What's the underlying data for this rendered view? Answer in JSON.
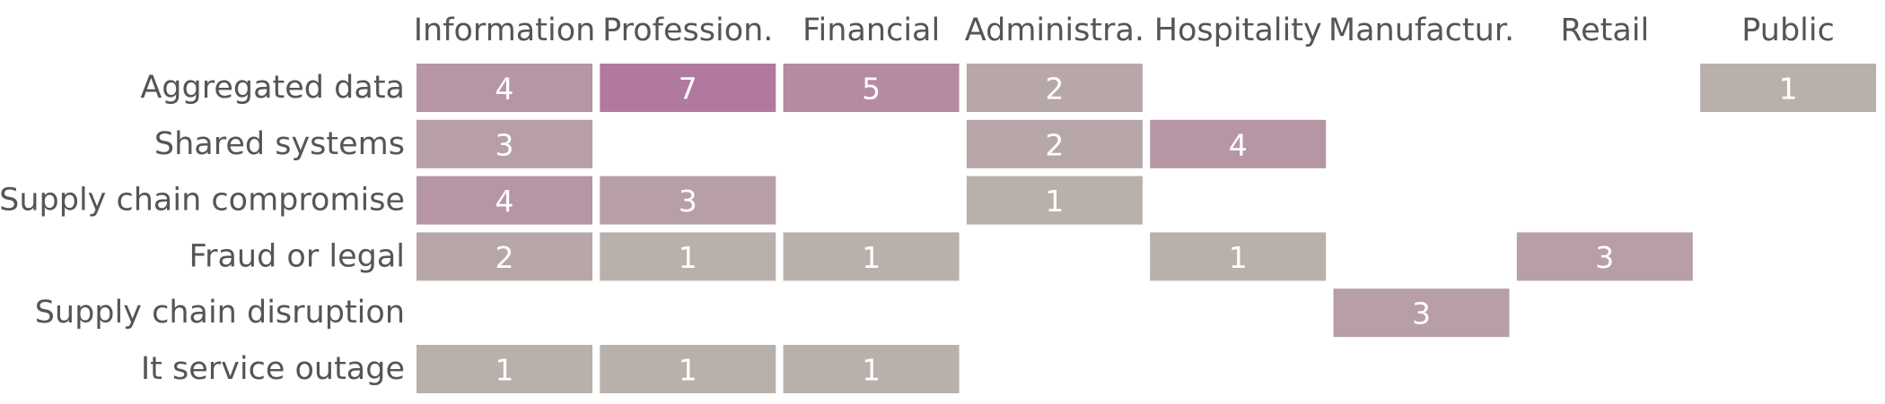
{
  "chart_data": {
    "type": "heatmap",
    "title": "",
    "xlabel": "",
    "ylabel": "",
    "columns": [
      "Information",
      "Profession.",
      "Financial",
      "Administra.",
      "Hospitality",
      "Manufactur.",
      "Retail",
      "Public"
    ],
    "rows": [
      "Aggregated data",
      "Shared systems",
      "Supply chain compromise",
      "Fraud or legal",
      "Supply chain disruption",
      "It service outage"
    ],
    "values": [
      [
        4,
        7,
        5,
        2,
        null,
        null,
        null,
        1
      ],
      [
        3,
        null,
        null,
        2,
        4,
        null,
        null,
        null
      ],
      [
        4,
        3,
        null,
        1,
        null,
        null,
        null,
        null
      ],
      [
        2,
        1,
        1,
        null,
        1,
        null,
        3,
        null
      ],
      [
        null,
        null,
        null,
        null,
        null,
        3,
        null,
        null
      ],
      [
        1,
        1,
        1,
        null,
        null,
        null,
        null,
        null
      ]
    ],
    "color_scale": {
      "low": "#b9b0ab",
      "high": "#b2799f",
      "min": 1,
      "max": 7
    },
    "label_color": "#ffffff",
    "text_color": "#555555",
    "grid": false,
    "legend": "none"
  }
}
